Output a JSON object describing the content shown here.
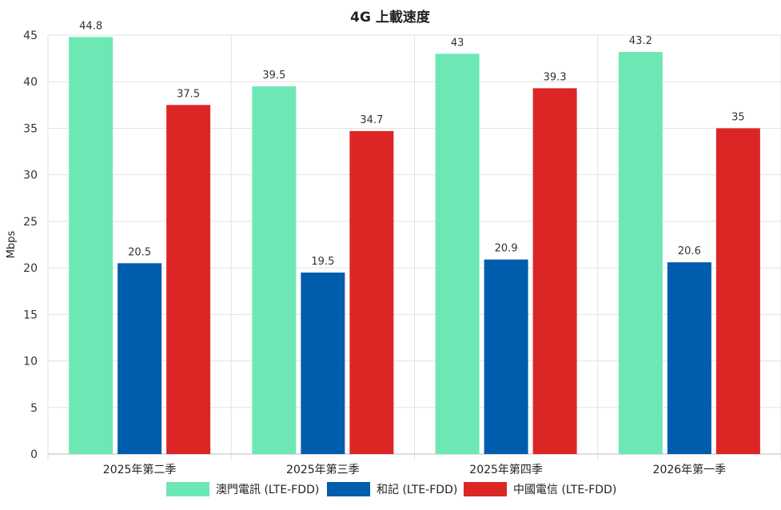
{
  "chart_data": {
    "type": "bar",
    "title": "4G 上載速度",
    "ylabel": "Mbps",
    "xlabel": "",
    "ylim": [
      0,
      45
    ],
    "yticks": [
      0,
      5,
      10,
      15,
      20,
      25,
      30,
      35,
      40,
      45
    ],
    "grid": true,
    "legend_position": "bottom",
    "categories": [
      "2025年第二季",
      "2025年第三季",
      "2025年第四季",
      "2026年第一季"
    ],
    "series": [
      {
        "name": "澳門電訊 (LTE-FDD)",
        "color": "#6de8b5",
        "values": [
          44.8,
          39.5,
          43,
          43.2
        ]
      },
      {
        "name": "和記 (LTE-FDD)",
        "color": "#005cad",
        "values": [
          20.5,
          19.5,
          20.9,
          20.6
        ]
      },
      {
        "name": "中國電信 (LTE-FDD)",
        "color": "#dc2626",
        "values": [
          37.5,
          34.7,
          39.3,
          35
        ]
      }
    ]
  }
}
